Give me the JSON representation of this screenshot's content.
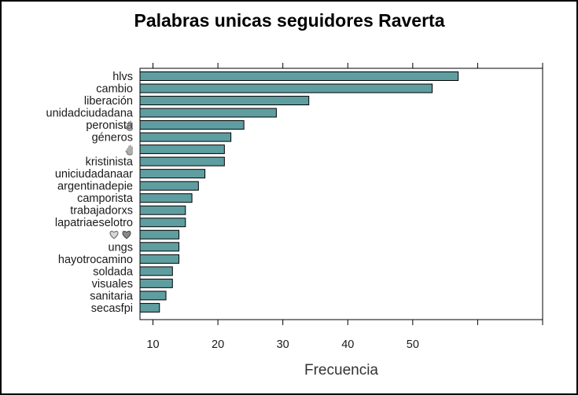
{
  "chart_data": {
    "type": "bar",
    "orientation": "horizontal",
    "title": "Palabras unicas seguidores Raverta",
    "xlabel": "Frecuencia",
    "ylabel": "",
    "xlim": [
      8,
      70
    ],
    "xticks": [
      10,
      20,
      30,
      40,
      50
    ],
    "bar_color": "#5f9ea0",
    "categories": [
      "hlvs",
      "cambio",
      "liberación",
      "unidadciudadana",
      "peronista",
      "géneros",
      "",
      "kristinista",
      "uniciudadanaar",
      "argentinadepie",
      "camporista",
      "trabajadorxs",
      "lapatriaeselotro",
      "",
      "ungs",
      "hayotrocamino",
      "soldada",
      "visuales",
      "sanitaria",
      "secasfpi"
    ],
    "values": [
      57,
      53,
      34,
      29,
      24,
      22,
      21,
      21,
      18,
      17,
      16,
      15,
      15,
      14,
      14,
      14,
      13,
      13,
      12,
      11
    ],
    "emoji_labels": [
      {
        "index": 4,
        "icon": "raised-hand-icon"
      },
      {
        "index": 6,
        "icon": "raised-hand-icon"
      },
      {
        "index": 13,
        "icon": "hearts-icon"
      }
    ]
  }
}
